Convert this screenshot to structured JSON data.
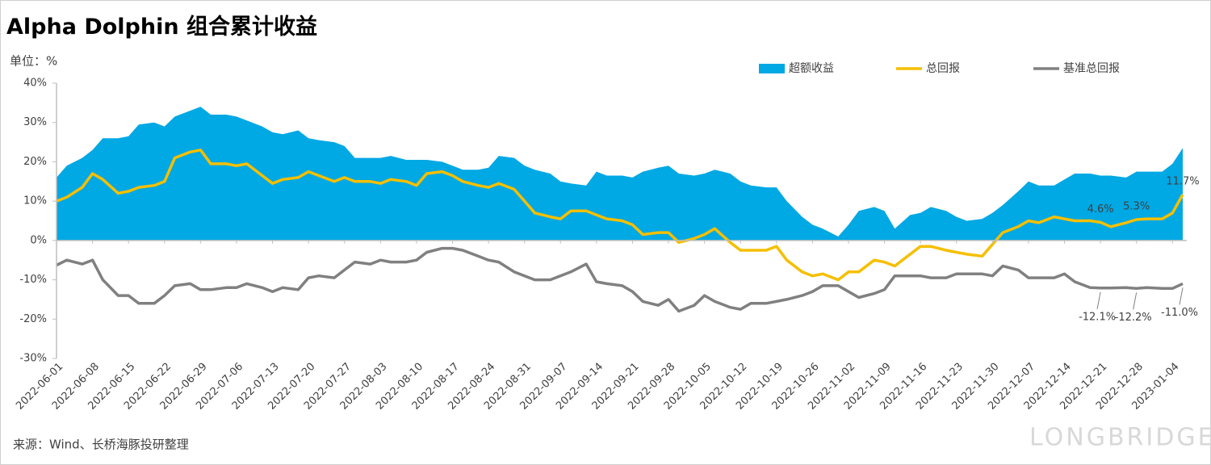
{
  "chart_data": {
    "type": "line",
    "title": "Alpha Dolphin 组合累计收益",
    "unit_label": "单位：%",
    "source": "来源：Wind、长桥海豚投研整理",
    "watermark": "LONGBRIDGE",
    "legend": "top",
    "x": [
      "2022-06-01",
      "2022-06-03",
      "2022-06-06",
      "2022-06-08",
      "2022-06-10",
      "2022-06-13",
      "2022-06-15",
      "2022-06-17",
      "2022-06-20",
      "2022-06-22",
      "2022-06-24",
      "2022-06-27",
      "2022-06-29",
      "2022-07-01",
      "2022-07-04",
      "2022-07-06",
      "2022-07-08",
      "2022-07-11",
      "2022-07-13",
      "2022-07-15",
      "2022-07-18",
      "2022-07-20",
      "2022-07-22",
      "2022-07-25",
      "2022-07-27",
      "2022-07-29",
      "2022-08-01",
      "2022-08-03",
      "2022-08-05",
      "2022-08-08",
      "2022-08-10",
      "2022-08-12",
      "2022-08-15",
      "2022-08-17",
      "2022-08-19",
      "2022-08-22",
      "2022-08-24",
      "2022-08-26",
      "2022-08-29",
      "2022-08-31",
      "2022-09-02",
      "2022-09-05",
      "2022-09-07",
      "2022-09-09",
      "2022-09-12",
      "2022-09-14",
      "2022-09-16",
      "2022-09-19",
      "2022-09-21",
      "2022-09-23",
      "2022-09-26",
      "2022-09-28",
      "2022-09-30",
      "2022-10-03",
      "2022-10-05",
      "2022-10-07",
      "2022-10-10",
      "2022-10-12",
      "2022-10-14",
      "2022-10-17",
      "2022-10-19",
      "2022-10-21",
      "2022-10-24",
      "2022-10-26",
      "2022-10-28",
      "2022-10-31",
      "2022-11-02",
      "2022-11-04",
      "2022-11-07",
      "2022-11-09",
      "2022-11-11",
      "2022-11-14",
      "2022-11-16",
      "2022-11-18",
      "2022-11-21",
      "2022-11-23",
      "2022-11-25",
      "2022-11-28",
      "2022-11-30",
      "2022-12-02",
      "2022-12-05",
      "2022-12-07",
      "2022-12-09",
      "2022-12-12",
      "2022-12-14",
      "2022-12-16",
      "2022-12-19",
      "2022-12-21",
      "2022-12-23",
      "2022-12-26",
      "2022-12-28",
      "2022-12-30",
      "2023-01-02",
      "2023-01-04",
      "2023-01-06"
    ],
    "xlim": [
      "2022-06-01",
      "2023-01-06"
    ],
    "xticks": [
      "2022-06-01",
      "2022-06-08",
      "2022-06-15",
      "2022-06-22",
      "2022-06-29",
      "2022-07-06",
      "2022-07-13",
      "2022-07-20",
      "2022-07-27",
      "2022-08-03",
      "2022-08-10",
      "2022-08-17",
      "2022-08-24",
      "2022-08-31",
      "2022-09-07",
      "2022-09-14",
      "2022-09-21",
      "2022-09-28",
      "2022-10-05",
      "2022-10-12",
      "2022-10-19",
      "2022-10-26",
      "2022-11-02",
      "2022-11-09",
      "2022-11-16",
      "2022-11-23",
      "2022-11-30",
      "2022-12-07",
      "2022-12-14",
      "2022-12-21",
      "2022-12-28",
      "2023-01-04"
    ],
    "ylim": [
      -30,
      40
    ],
    "yticks": [
      {
        "value": -30,
        "label": "-30%"
      },
      {
        "value": -20,
        "label": "-20%"
      },
      {
        "value": -10,
        "label": "-10%"
      },
      {
        "value": 0,
        "label": "0%"
      },
      {
        "value": 10,
        "label": "10%"
      },
      {
        "value": 20,
        "label": "20%"
      },
      {
        "value": 30,
        "label": "30%"
      },
      {
        "value": 40,
        "label": "40%"
      }
    ],
    "series": [
      {
        "name": "超额收益",
        "type": "area",
        "color": "#00a8e4",
        "values": [
          16,
          19,
          21,
          23,
          26,
          26,
          26.5,
          29.5,
          30,
          29,
          31.5,
          33,
          34,
          32,
          32,
          31.5,
          30.5,
          29,
          27.5,
          27,
          28,
          26,
          25.5,
          25,
          24,
          21,
          21,
          21,
          21.5,
          20.5,
          20.5,
          20.5,
          20,
          19,
          18,
          18,
          18.5,
          21.5,
          21,
          19,
          18,
          17,
          15,
          14.5,
          14,
          17.5,
          16.5,
          16.5,
          16,
          17.5,
          18.5,
          19,
          17,
          16.5,
          17,
          18,
          17,
          15,
          14,
          13.5,
          13.5,
          10,
          6,
          4,
          3,
          1,
          4,
          7.5,
          8.5,
          7.5,
          3,
          6.5,
          7,
          8.5,
          7.5,
          6,
          5,
          5.5,
          7,
          9,
          12.5,
          15,
          14,
          14,
          15.5,
          17,
          17,
          16.5,
          16.5,
          16,
          17.5,
          17.5,
          17.5,
          19.5,
          23.5
        ]
      },
      {
        "name": "总回报",
        "type": "line",
        "color": "#f5bf00",
        "values": [
          10,
          11,
          13.5,
          17,
          15.5,
          12,
          12.5,
          13.5,
          14,
          15,
          21,
          22.5,
          23,
          19.5,
          19.5,
          19,
          19.5,
          16.5,
          14.5,
          15.5,
          16,
          17.5,
          16.5,
          15,
          16,
          15,
          15,
          14.5,
          15.5,
          15,
          14,
          17,
          17.5,
          16.5,
          15,
          14,
          13.5,
          14.5,
          13,
          10,
          7,
          6,
          5.5,
          7.5,
          7.5,
          6.5,
          5.5,
          5,
          4,
          1.5,
          2,
          2,
          -0.5,
          0.5,
          1.5,
          3,
          -0.5,
          -2.5,
          -2.5,
          -2.5,
          -1.5,
          -5,
          -8,
          -9,
          -8.5,
          -10,
          -8,
          -8,
          -5,
          -5.5,
          -6.5,
          -3.5,
          -1.5,
          -1.5,
          -2.5,
          -3,
          -3.5,
          -4,
          -1,
          2,
          3.5,
          5,
          4.5,
          6,
          5.5,
          5,
          5,
          4.6,
          3.5,
          4.5,
          5.3,
          5.5,
          5.5,
          7,
          11.7
        ],
        "value_labels": [
          null,
          null,
          null,
          null,
          null,
          null,
          null,
          null,
          null,
          null,
          null,
          null,
          null,
          null,
          null,
          null,
          null,
          null,
          null,
          null,
          null,
          null,
          null,
          null,
          null,
          null,
          null,
          null,
          null,
          null,
          null,
          null,
          null,
          null,
          null,
          null,
          null,
          null,
          null,
          null,
          null,
          null,
          null,
          null,
          null,
          null,
          null,
          null,
          null,
          null,
          null,
          null,
          null,
          null,
          null,
          null,
          null,
          null,
          null,
          null,
          null,
          null,
          null,
          null,
          null,
          null,
          null,
          null,
          null,
          null,
          null,
          null,
          null,
          null,
          null,
          null,
          null,
          null,
          null,
          null,
          null,
          null,
          null,
          null,
          null,
          null,
          null,
          "4.6%",
          null,
          null,
          "5.3%",
          null,
          null,
          null,
          "11.7%"
        ]
      },
      {
        "name": "基准总回报",
        "type": "line",
        "color": "#808080",
        "values": [
          -6.3,
          -5,
          -6,
          -5,
          -10,
          -14,
          -14,
          -16,
          -16,
          -14,
          -11.5,
          -11,
          -12.5,
          -12.5,
          -12,
          -12,
          -11,
          -12,
          -13,
          -12,
          -12.5,
          -9.5,
          -9,
          -9.5,
          -7.5,
          -5.5,
          -6,
          -5,
          -5.5,
          -5.5,
          -5,
          -3,
          -2,
          -2,
          -2.5,
          -4,
          -5,
          -5.5,
          -8,
          -9,
          -10,
          -10,
          -9,
          -8,
          -6,
          -10.5,
          -11,
          -11.5,
          -13,
          -15.5,
          -16.5,
          -15,
          -18,
          -16.5,
          -14,
          -15.5,
          -17,
          -17.5,
          -16,
          -16,
          -15.5,
          -15,
          -14,
          -13,
          -11.5,
          -11.5,
          -13,
          -14.5,
          -13.5,
          -12.5,
          -9,
          -9,
          -9,
          -9.5,
          -9.5,
          -8.5,
          -8.5,
          -8.5,
          -9,
          -6.5,
          -7.5,
          -9.5,
          -9.5,
          -9.5,
          -8.5,
          -10.5,
          -12,
          -12.1,
          -12.1,
          -12,
          -12.2,
          -12,
          -12.2,
          -12.2,
          -11
        ],
        "value_labels": [
          null,
          null,
          null,
          null,
          null,
          null,
          null,
          null,
          null,
          null,
          null,
          null,
          null,
          null,
          null,
          null,
          null,
          null,
          null,
          null,
          null,
          null,
          null,
          null,
          null,
          null,
          null,
          null,
          null,
          null,
          null,
          null,
          null,
          null,
          null,
          null,
          null,
          null,
          null,
          null,
          null,
          null,
          null,
          null,
          null,
          null,
          null,
          null,
          null,
          null,
          null,
          null,
          null,
          null,
          null,
          null,
          null,
          null,
          null,
          null,
          null,
          null,
          null,
          null,
          null,
          null,
          null,
          null,
          null,
          null,
          null,
          null,
          null,
          null,
          null,
          null,
          null,
          null,
          null,
          null,
          null,
          null,
          null,
          null,
          null,
          null,
          null,
          "-12.1%",
          null,
          null,
          "-12.2%",
          null,
          null,
          null,
          "-11.0%"
        ]
      }
    ]
  }
}
